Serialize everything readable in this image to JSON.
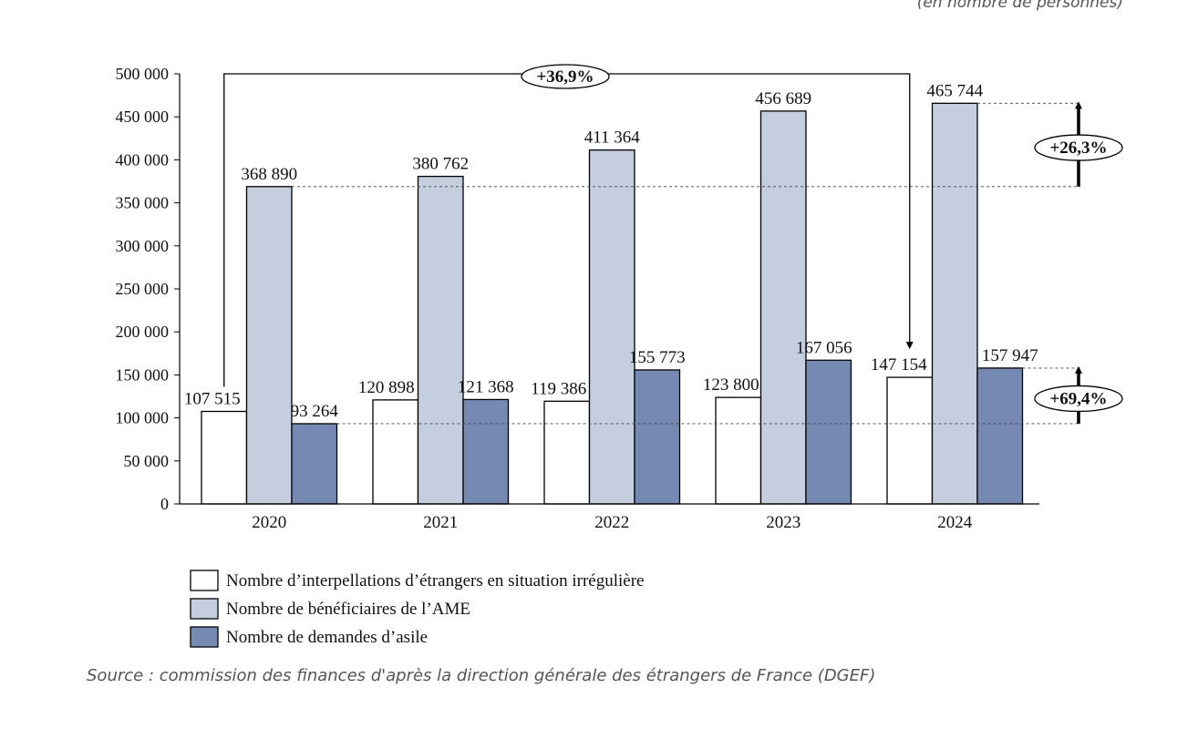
{
  "unit_note": "(en nombre de personnes)",
  "source": "Source : commission des finances d'après la direction générale des étrangers de France (DGEF)",
  "colors": {
    "interpellations": "#ffffff",
    "ame": "#c5cedf",
    "asile": "#7589b3",
    "outline": "#000000"
  },
  "chart_data": {
    "type": "bar",
    "categories": [
      "2020",
      "2021",
      "2022",
      "2023",
      "2024"
    ],
    "series": [
      {
        "name": "Nombre d’interpellations d’étrangers en situation irrégulière",
        "values": [
          107515,
          120898,
          119386,
          123800,
          147154
        ],
        "labels": [
          "107 515",
          "120 898",
          "119 386",
          "123 800",
          "147 154"
        ]
      },
      {
        "name": "Nombre de bénéficiaires de l’AME",
        "values": [
          368890,
          380762,
          411364,
          456689,
          465744
        ],
        "labels": [
          "368 890",
          "380 762",
          "411 364",
          "456 689",
          "465 744"
        ]
      },
      {
        "name": "Nombre de demandes d’asile",
        "values": [
          93264,
          121368,
          155773,
          167056,
          157947
        ],
        "labels": [
          "93 264",
          "121 368",
          "155 773",
          "167 056",
          "157 947"
        ]
      }
    ],
    "ylim": [
      0,
      500000
    ],
    "yticks": [
      0,
      50000,
      100000,
      150000,
      200000,
      250000,
      300000,
      350000,
      400000,
      450000,
      500000
    ],
    "ytick_labels": [
      "0",
      "50 000",
      "100 000",
      "150 000",
      "200 000",
      "250 000",
      "300 000",
      "350 000",
      "400 000",
      "450 000",
      "500 000"
    ],
    "grid": false,
    "legend_position": "bottom",
    "annotations": [
      {
        "text": "+36,9%",
        "from": {
          "category": "2020",
          "series": 0
        },
        "to": {
          "category": "2024",
          "series": 0
        }
      },
      {
        "text": "+26,3%",
        "from_value": 368890,
        "to_value": 465744
      },
      {
        "text": "+69,4%",
        "from_value": 93264,
        "to_value": 157947
      }
    ]
  }
}
